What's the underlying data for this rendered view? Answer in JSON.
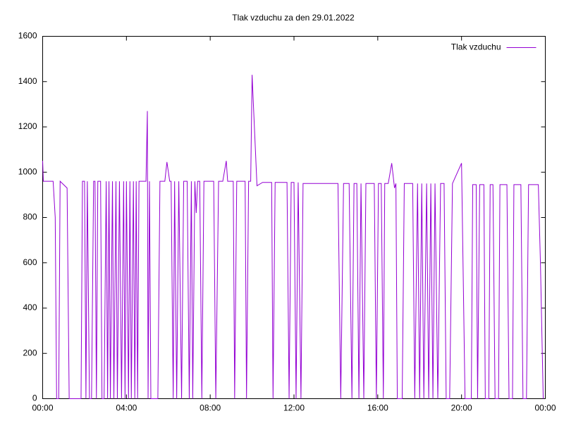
{
  "chart_data": {
    "type": "line",
    "title": "Tlak vzduchu za den 29.01.2022",
    "xlim": [
      0,
      1440
    ],
    "xticks": [
      {
        "value": 0,
        "label": "00:00"
      },
      {
        "value": 240,
        "label": "04:00"
      },
      {
        "value": 480,
        "label": "08:00"
      },
      {
        "value": 720,
        "label": "12:00"
      },
      {
        "value": 960,
        "label": "16:00"
      },
      {
        "value": 1200,
        "label": "20:00"
      },
      {
        "value": 1440,
        "label": "00:00"
      }
    ],
    "ylim": [
      0,
      1600
    ],
    "yticks": [
      0,
      200,
      400,
      600,
      800,
      1000,
      1200,
      1400,
      1600
    ],
    "legend": "top right",
    "grid": false,
    "x": [
      0,
      2,
      30,
      36,
      40,
      46,
      50,
      70,
      76,
      110,
      114,
      120,
      124,
      128,
      134,
      140,
      146,
      150,
      154,
      158,
      166,
      170,
      176,
      182,
      186,
      190,
      194,
      200,
      204,
      210,
      214,
      220,
      226,
      232,
      236,
      240,
      246,
      250,
      254,
      260,
      264,
      268,
      272,
      276,
      296,
      300,
      302,
      306,
      310,
      330,
      336,
      350,
      356,
      364,
      368,
      374,
      378,
      384,
      390,
      398,
      404,
      414,
      420,
      426,
      430,
      436,
      440,
      444,
      450,
      456,
      462,
      490,
      496,
      504,
      516,
      526,
      530,
      546,
      550,
      556,
      580,
      584,
      590,
      596,
      600,
      614,
      630,
      656,
      660,
      666,
      700,
      706,
      712,
      720,
      726,
      732,
      740,
      746,
      846,
      854,
      862,
      878,
      886,
      892,
      900,
      906,
      912,
      920,
      926,
      950,
      956,
      962,
      970,
      976,
      980,
      990,
      1000,
      1008,
      1012,
      1016,
      1030,
      1036,
      1060,
      1066,
      1074,
      1080,
      1086,
      1092,
      1100,
      1106,
      1112,
      1118,
      1124,
      1132,
      1140,
      1150,
      1156,
      1166,
      1174,
      1200,
      1210,
      1228,
      1232,
      1242,
      1246,
      1252,
      1264,
      1268,
      1278,
      1282,
      1290,
      1296,
      1306,
      1310,
      1330,
      1336,
      1346,
      1350,
      1370,
      1376,
      1386,
      1392,
      1420,
      1426,
      1434
    ],
    "series": [
      {
        "name": "Tlak vzduchu",
        "color": "#9400d3",
        "values": [
          1050,
          960,
          960,
          800,
          0,
          0,
          960,
          930,
          0,
          0,
          960,
          960,
          0,
          960,
          0,
          0,
          960,
          960,
          0,
          960,
          960,
          0,
          0,
          960,
          0,
          960,
          0,
          960,
          0,
          960,
          0,
          960,
          0,
          960,
          0,
          960,
          0,
          960,
          0,
          960,
          0,
          960,
          0,
          960,
          960,
          1270,
          0,
          960,
          0,
          0,
          960,
          960,
          1045,
          960,
          960,
          0,
          960,
          0,
          960,
          0,
          960,
          960,
          0,
          960,
          0,
          960,
          820,
          960,
          960,
          0,
          960,
          960,
          0,
          960,
          960,
          1050,
          960,
          960,
          0,
          960,
          960,
          0,
          960,
          960,
          1430,
          940,
          955,
          955,
          0,
          955,
          955,
          0,
          955,
          955,
          0,
          955,
          0,
          950,
          950,
          0,
          950,
          950,
          0,
          950,
          950,
          0,
          950,
          0,
          950,
          950,
          0,
          950,
          950,
          0,
          950,
          950,
          1040,
          930,
          950,
          0,
          0,
          950,
          950,
          0,
          950,
          0,
          950,
          0,
          950,
          0,
          950,
          0,
          950,
          0,
          950,
          950,
          0,
          0,
          950,
          1040,
          0,
          0,
          945,
          945,
          0,
          945,
          945,
          0,
          0,
          945,
          945,
          0,
          0,
          945,
          945,
          0,
          0,
          945,
          945,
          0,
          0,
          945,
          945,
          600,
          0
        ]
      }
    ]
  }
}
